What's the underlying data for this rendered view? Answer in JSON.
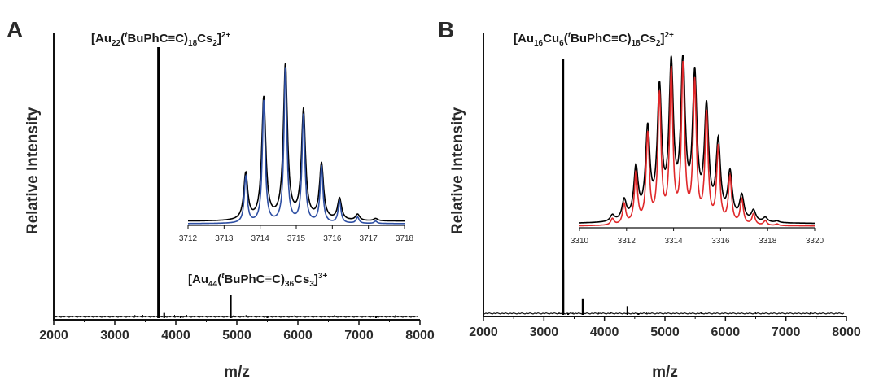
{
  "chart_data": [
    {
      "panel": "A",
      "type": "line",
      "xlabel": "m/z",
      "ylabel": "Relative Intensity",
      "xlim": [
        2000,
        8000
      ],
      "xticks": [
        "2000",
        "3000",
        "4000",
        "5000",
        "6000",
        "7000",
        "8000"
      ],
      "peaks": [
        {
          "x": 3715,
          "y": 1.0
        },
        {
          "x": 3810,
          "y": 0.025
        },
        {
          "x": 4080,
          "y": 0.006
        },
        {
          "x": 4900,
          "y": 0.09
        },
        {
          "x": 5500,
          "y": 0.012
        },
        {
          "x": 7280,
          "y": 0.004
        }
      ],
      "annotations": [
        {
          "parts": [
            [
              "[Au",
              "n"
            ],
            [
              "22",
              "sub"
            ],
            [
              "(",
              "n"
            ],
            [
              "t",
              "supi"
            ],
            [
              "BuPhC≡C)",
              "n"
            ],
            [
              "18",
              "sub"
            ],
            [
              "Cs",
              "n"
            ],
            [
              "2",
              "sub"
            ],
            [
              "]",
              "n"
            ],
            [
              "2+",
              "sup"
            ]
          ],
          "at_x": 3715
        },
        {
          "parts": [
            [
              "[Au",
              "n"
            ],
            [
              "44",
              "sub"
            ],
            [
              "(",
              "n"
            ],
            [
              "t",
              "supi"
            ],
            [
              "BuPhC≡C)",
              "n"
            ],
            [
              "36",
              "sub"
            ],
            [
              "Cs",
              "n"
            ],
            [
              "3",
              "sub"
            ],
            [
              "]",
              "n"
            ],
            [
              "3+",
              "sup"
            ]
          ],
          "at_x": 4900
        }
      ],
      "inset": {
        "xlim": [
          3712,
          3718
        ],
        "xticks": [
          "3712",
          "3713",
          "3714",
          "3715",
          "3716",
          "3717",
          "3718"
        ],
        "experimental_color": "#000000",
        "simulated_color": "#2e4fa3",
        "peaks": [
          {
            "x": 3713.6,
            "y": 0.3
          },
          {
            "x": 3714.1,
            "y": 0.79
          },
          {
            "x": 3714.7,
            "y": 1.0
          },
          {
            "x": 3715.2,
            "y": 0.7
          },
          {
            "x": 3715.7,
            "y": 0.36
          },
          {
            "x": 3716.2,
            "y": 0.14
          },
          {
            "x": 3716.7,
            "y": 0.04
          },
          {
            "x": 3717.2,
            "y": 0.015
          }
        ]
      }
    },
    {
      "panel": "B",
      "type": "line",
      "xlabel": "m/z",
      "ylabel": "Relative Intensity",
      "xlim": [
        2000,
        8000
      ],
      "xticks": [
        "2000",
        "3000",
        "4000",
        "5000",
        "6000",
        "7000",
        "8000"
      ],
      "peaks": [
        {
          "x": 3314,
          "y": 1.0
        },
        {
          "x": 3320,
          "y": 0.18
        },
        {
          "x": 3400,
          "y": 0.01
        },
        {
          "x": 3640,
          "y": 0.07
        },
        {
          "x": 4380,
          "y": 0.04
        },
        {
          "x": 4560,
          "y": 0.008
        }
      ],
      "annotations": [
        {
          "parts": [
            [
              "[Au",
              "n"
            ],
            [
              "16",
              "sub"
            ],
            [
              "Cu",
              "n"
            ],
            [
              "6",
              "sub"
            ],
            [
              "(",
              "n"
            ],
            [
              "t",
              "supi"
            ],
            [
              "BuPhC≡C)",
              "n"
            ],
            [
              "18",
              "sub"
            ],
            [
              "Cs",
              "n"
            ],
            [
              "2",
              "sub"
            ],
            [
              "]",
              "n"
            ],
            [
              "2+",
              "sup"
            ]
          ],
          "at_x": 3314
        }
      ],
      "inset": {
        "xlim": [
          3310,
          3320
        ],
        "xticks": [
          "3310",
          "3312",
          "3314",
          "3316",
          "3318",
          "3320"
        ],
        "experimental_color": "#000000",
        "simulated_color": "#e0282a",
        "peaks": [
          {
            "x": 3311.4,
            "y": 0.04
          },
          {
            "x": 3311.9,
            "y": 0.13
          },
          {
            "x": 3312.4,
            "y": 0.33
          },
          {
            "x": 3312.9,
            "y": 0.57
          },
          {
            "x": 3313.4,
            "y": 0.82
          },
          {
            "x": 3313.9,
            "y": 0.97
          },
          {
            "x": 3314.4,
            "y": 1.0
          },
          {
            "x": 3314.9,
            "y": 0.9
          },
          {
            "x": 3315.4,
            "y": 0.7
          },
          {
            "x": 3315.9,
            "y": 0.49
          },
          {
            "x": 3316.4,
            "y": 0.3
          },
          {
            "x": 3316.9,
            "y": 0.16
          },
          {
            "x": 3317.4,
            "y": 0.07
          },
          {
            "x": 3317.9,
            "y": 0.03
          },
          {
            "x": 3318.4,
            "y": 0.01
          }
        ]
      }
    }
  ]
}
